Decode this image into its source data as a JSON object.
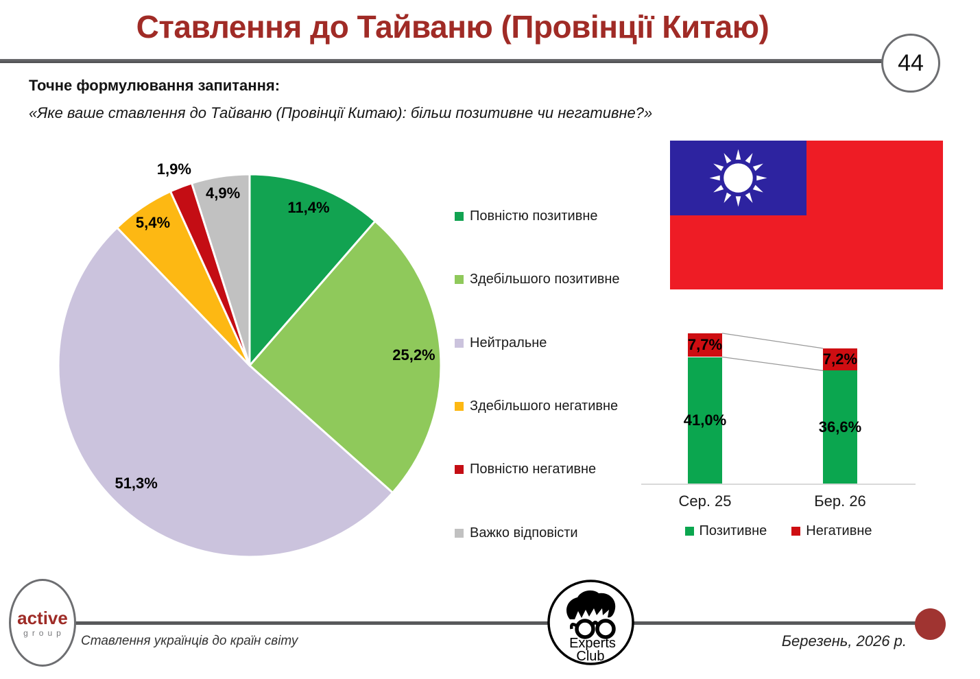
{
  "slide": {
    "title": "Ставлення до Тайваню (Провінції Китаю)",
    "page_number": "44",
    "question_label": "Точне формулювання запитання:",
    "question_quote": "«Яке ваше ставлення до Тайваню (Провінції Китаю): більш позитивне чи негативне?»"
  },
  "chart_data": [
    {
      "type": "pie",
      "title": "Ставлення до Тайваню (Провінції Китаю)",
      "units": "%",
      "direction": "clockwise",
      "start_angle_deg": 0,
      "legend_position": "right",
      "slices": [
        {
          "label": "Повністю позитивне",
          "value": 11.4,
          "display": "11,4%",
          "color": "#12A351"
        },
        {
          "label": "Здебільшого позитивне",
          "value": 25.2,
          "display": "25,2%",
          "color": "#8FC95B"
        },
        {
          "label": "Нейтральне",
          "value": 51.3,
          "display": "51,3%",
          "color": "#CBC3DD"
        },
        {
          "label": "Здебільшого негативне",
          "value": 5.4,
          "display": "5,4%",
          "color": "#FDB813"
        },
        {
          "label": "Повністю негативне",
          "value": 1.9,
          "display": "1,9%",
          "color": "#C40D14"
        },
        {
          "label": "Важко відповісти",
          "value": 4.9,
          "display": "4,9%",
          "color": "#C1C1C1"
        }
      ],
      "label_layout": {
        "radius_factors": [
          0.88,
          0.86,
          0.855,
          0.9,
          1.1,
          0.91
        ]
      }
    },
    {
      "type": "bar",
      "subtype": "stacked-column",
      "categories": [
        "Сер. 25",
        "Бер. 26"
      ],
      "series": [
        {
          "name": "Позитивне",
          "color": "#0BA64F",
          "values": [
            41.0,
            36.6
          ],
          "displays": [
            "41,0%",
            "36,6%"
          ]
        },
        {
          "name": "Негативне",
          "color": "#CE0E12",
          "values": [
            7.7,
            7.2
          ],
          "displays": [
            "7,7%",
            "7,2%"
          ]
        }
      ],
      "ylim": [
        0,
        52
      ],
      "legend_position": "bottom",
      "connector_lines": true,
      "grid": false
    }
  ],
  "flag": {
    "country": "Taiwan",
    "field_color": "#EE1C25",
    "canton_color": "#2D23A0",
    "sun_color": "#FFFFFF"
  },
  "footer": {
    "active_group_logo": {
      "line1": "active",
      "line2": "group"
    },
    "series_subtitle": "Ставлення українців до країн світу",
    "experts_club_logo": {
      "line1": "Experts",
      "line2": "Club"
    },
    "date": "Березень, 2026 р."
  }
}
